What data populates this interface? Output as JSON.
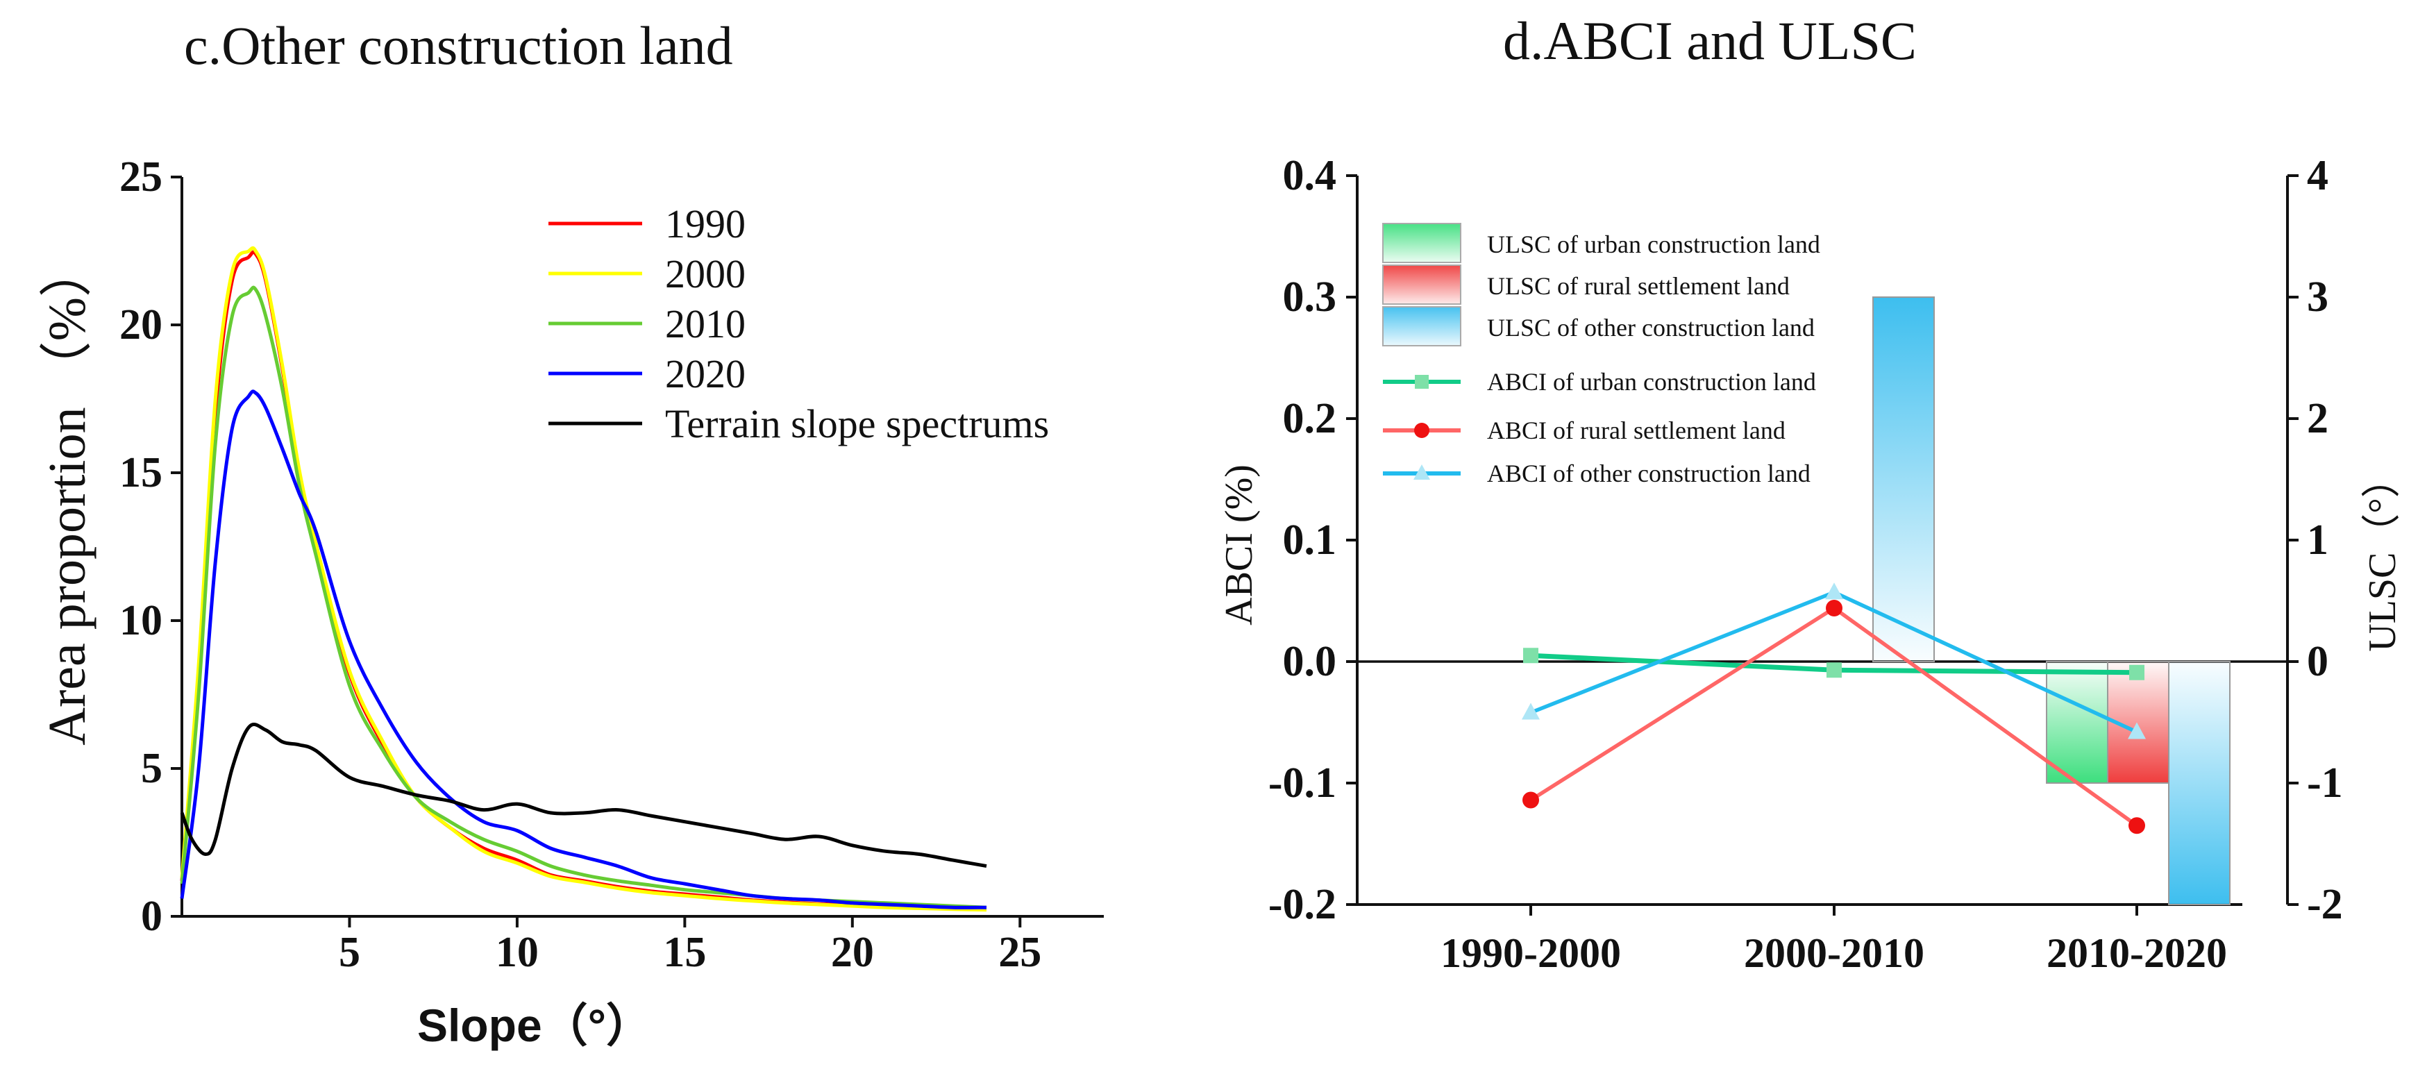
{
  "chart_data": [
    {
      "id": "c",
      "type": "line",
      "title": "c.Other construction land",
      "xlabel": "Slope（°）",
      "ylabel": "Area proportion （%）",
      "xlim": [
        0,
        27.5
      ],
      "ylim": [
        0,
        25
      ],
      "xticks": [
        5,
        10,
        15,
        20,
        25
      ],
      "xtick_labels": [
        "5",
        "10",
        "15",
        "20",
        "25"
      ],
      "yticks": [
        0,
        5,
        10,
        15,
        20,
        25
      ],
      "ytick_labels": [
        "0",
        "5",
        "10",
        "15",
        "20",
        "25"
      ],
      "legend_position": "top-right",
      "series": [
        {
          "name": "1990",
          "color": "#ff0000",
          "x": [
            0,
            0.5,
            1,
            1.5,
            2,
            2.2,
            2.5,
            3,
            3.5,
            4,
            5,
            6,
            7,
            8,
            9,
            10,
            11,
            12,
            13,
            14,
            15,
            16,
            17,
            18,
            19,
            20,
            21,
            22,
            23,
            24
          ],
          "y": [
            1.2,
            8,
            17,
            21.5,
            22.3,
            22.4,
            21.5,
            18.5,
            15,
            12.5,
            8.2,
            5.8,
            4.0,
            3.0,
            2.3,
            1.9,
            1.4,
            1.2,
            1.0,
            0.85,
            0.75,
            0.65,
            0.55,
            0.48,
            0.42,
            0.38,
            0.34,
            0.3,
            0.28,
            0.25
          ]
        },
        {
          "name": "2000",
          "color": "#ffff00",
          "x": [
            0,
            0.5,
            1,
            1.5,
            2,
            2.2,
            2.5,
            3,
            3.5,
            4,
            5,
            6,
            7,
            8,
            9,
            10,
            11,
            12,
            13,
            14,
            15,
            16,
            17,
            18,
            19,
            20,
            21,
            22,
            23,
            24
          ],
          "y": [
            1.3,
            8.5,
            17.5,
            21.8,
            22.5,
            22.5,
            21.6,
            18.6,
            15.1,
            12.6,
            8.3,
            5.9,
            4.0,
            3.0,
            2.2,
            1.8,
            1.35,
            1.15,
            0.95,
            0.8,
            0.7,
            0.6,
            0.52,
            0.45,
            0.4,
            0.35,
            0.3,
            0.27,
            0.24,
            0.22
          ]
        },
        {
          "name": "2010",
          "color": "#66cc33",
          "x": [
            0,
            0.5,
            1,
            1.5,
            2,
            2.2,
            2.5,
            3,
            3.5,
            4,
            5,
            6,
            7,
            8,
            9,
            10,
            11,
            12,
            13,
            14,
            15,
            16,
            17,
            18,
            19,
            20,
            21,
            22,
            23,
            24
          ],
          "y": [
            1.1,
            7.5,
            16,
            20.3,
            21.1,
            21.2,
            20.3,
            17.8,
            14.6,
            12.2,
            7.8,
            5.6,
            4.0,
            3.2,
            2.6,
            2.2,
            1.7,
            1.4,
            1.2,
            1.05,
            0.9,
            0.8,
            0.7,
            0.6,
            0.55,
            0.5,
            0.45,
            0.4,
            0.35,
            0.3
          ]
        },
        {
          "name": "2020",
          "color": "#0000ff",
          "x": [
            0,
            0.5,
            1,
            1.5,
            2,
            2.2,
            2.5,
            3,
            3.5,
            4,
            5,
            6,
            7,
            8,
            9,
            10,
            11,
            12,
            13,
            14,
            15,
            16,
            17,
            18,
            19,
            20,
            21,
            22,
            23,
            24
          ],
          "y": [
            0.6,
            5,
            12,
            16.5,
            17.6,
            17.7,
            17.2,
            15.8,
            14.3,
            13.0,
            9.3,
            7.0,
            5.2,
            4.0,
            3.2,
            2.9,
            2.3,
            2.0,
            1.7,
            1.3,
            1.1,
            0.9,
            0.7,
            0.6,
            0.55,
            0.45,
            0.4,
            0.35,
            0.3,
            0.3
          ]
        },
        {
          "name": "Terrain slope spectrums",
          "color": "#000000",
          "x": [
            0,
            0.3,
            0.7,
            1,
            1.5,
            2,
            2.5,
            3,
            3.5,
            4,
            5,
            6,
            7,
            8,
            9,
            10,
            11,
            12,
            13,
            14,
            15,
            16,
            17,
            18,
            19,
            20,
            21,
            22,
            23,
            24
          ],
          "y": [
            3.5,
            2.6,
            2.1,
            2.6,
            5.0,
            6.4,
            6.3,
            5.9,
            5.8,
            5.6,
            4.7,
            4.4,
            4.1,
            3.9,
            3.6,
            3.8,
            3.5,
            3.5,
            3.6,
            3.4,
            3.2,
            3.0,
            2.8,
            2.6,
            2.7,
            2.4,
            2.2,
            2.1,
            1.9,
            1.7
          ]
        }
      ]
    },
    {
      "id": "d",
      "type": "bar+line",
      "title": "d.ABCI and ULSC",
      "categories": [
        "1990-2000",
        "2000-2010",
        "2010-2020"
      ],
      "ylabel": "ABCI (%)",
      "y2label": "ULSC（°）",
      "ylim": [
        -0.2,
        0.4
      ],
      "y2lim": [
        -2,
        4
      ],
      "yticks": [
        -0.2,
        -0.1,
        0.0,
        0.1,
        0.2,
        0.3,
        0.4
      ],
      "ytick_labels": [
        "-0.2",
        "-0.1",
        "0.0",
        "0.1",
        "0.2",
        "0.3",
        "0.4"
      ],
      "y2ticks": [
        -2,
        -1,
        0,
        1,
        2,
        3,
        4
      ],
      "y2tick_labels": [
        "-2",
        "-1",
        "0",
        "1",
        "2",
        "3",
        "4"
      ],
      "legend_position": "top-left",
      "bars": [
        {
          "name": "ULSC of urban construction land",
          "color": "#33dd77",
          "values": [
            0,
            0,
            -1.0
          ]
        },
        {
          "name": "ULSC of rural settlement land",
          "color": "#ee3333",
          "values": [
            0,
            0,
            -1.0
          ]
        },
        {
          "name": "ULSC of other construction land",
          "color": "#33bbee",
          "values": [
            0,
            3.0,
            -2.0
          ]
        }
      ],
      "lines": [
        {
          "name": "ABCI of urban construction land",
          "color": "#11cc88",
          "marker": "square",
          "values": [
            0.005,
            -0.007,
            -0.009
          ]
        },
        {
          "name": "ABCI of rural settlement land",
          "color": "#ff6666",
          "marker": "circle",
          "values": [
            -0.114,
            0.044,
            -0.135
          ]
        },
        {
          "name": "ABCI of other construction land",
          "color": "#22bbee",
          "marker": "triangle",
          "values": [
            -0.042,
            0.057,
            -0.058
          ]
        }
      ]
    }
  ]
}
